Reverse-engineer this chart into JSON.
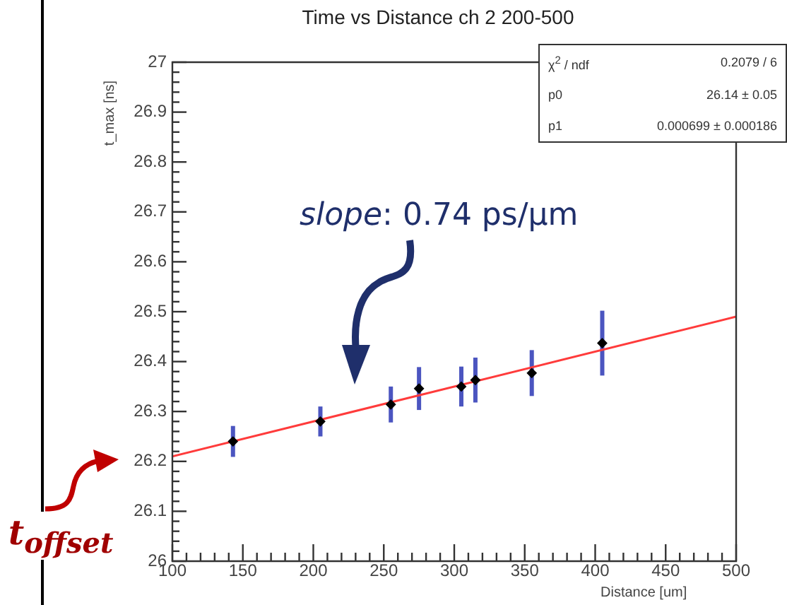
{
  "chart_data": {
    "type": "scatter",
    "title": "Time vs Distance ch 2 200-500",
    "xlabel": "Distance [um]",
    "ylabel": "t_max [ns]",
    "xlim": [
      100,
      500
    ],
    "xticks": [
      100,
      150,
      200,
      250,
      300,
      350,
      400,
      450,
      500
    ],
    "ylim": [
      26,
      27
    ],
    "yticks": [
      26,
      26.1,
      26.2,
      26.3,
      26.4,
      26.5,
      26.6,
      26.7,
      26.8,
      26.9,
      27
    ],
    "grid": false,
    "legend": false,
    "marker": "diamond",
    "series": [
      {
        "color": "#000000",
        "x": [
          143,
          205,
          255,
          275,
          305,
          315,
          355,
          405
        ],
        "values": [
          26.24,
          26.28,
          26.314,
          26.346,
          26.35,
          26.363,
          26.377,
          26.437
        ],
        "errors": [
          0.031,
          0.03,
          0.036,
          0.043,
          0.04,
          0.045,
          0.046,
          0.065
        ]
      },
      {
        "type": "line",
        "color": "#ff3b3b",
        "x": [
          100,
          500
        ],
        "values": [
          26.21,
          26.49
        ],
        "marker": "none",
        "line_style": "solid"
      }
    ],
    "annotations": [
      "χ$^{2}$ / ndf",
      "0.2079 / 6",
      "p0",
      "26.14 ± 0.05",
      "p1",
      "0.000699 ± 0.000186",
      "slope: 0.74 ps/μm",
      "t$_{offset}$"
    ]
  }
}
